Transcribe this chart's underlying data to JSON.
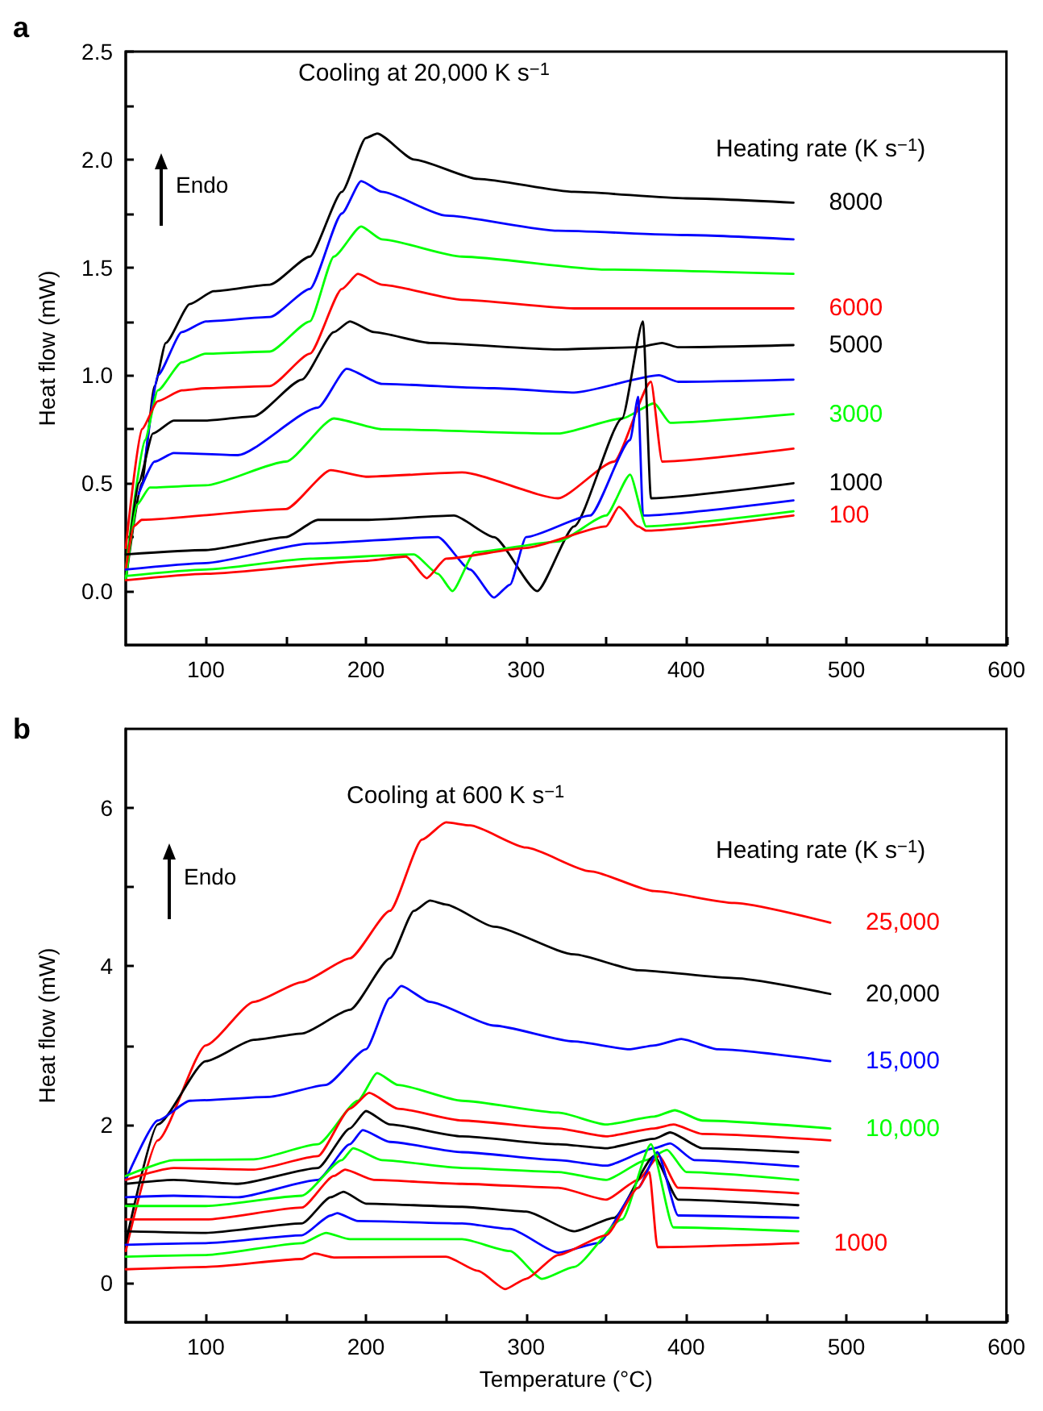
{
  "chart_data": [
    {
      "type": "line",
      "title": "Cooling at 20,000 K s$^{−1}$",
      "legend_title": "Heating rate (K s$^{−1}$)",
      "ylabel": "Heat flow (mW)",
      "annotations": [
        "a",
        "Endo"
      ],
      "xlim": [
        50,
        600
      ],
      "xticks": [
        100,
        {
          "value": 150,
          "label": null
        },
        200,
        {
          "value": 250,
          "label": null
        },
        300,
        {
          "value": 350,
          "label": null
        },
        400,
        {
          "value": 450,
          "label": null
        },
        500,
        {
          "value": 550,
          "label": null
        },
        600
      ],
      "ylim": [
        -0.25,
        2.5
      ],
      "yticks": [
        {
          "value": 0,
          "label": "0.0"
        },
        {
          "value": 0.25,
          "label": null
        },
        0.5,
        {
          "value": 0.75,
          "label": null
        },
        {
          "value": 1,
          "label": "1.0"
        },
        {
          "value": 1.25,
          "label": null
        },
        1.5,
        {
          "value": 1.75,
          "label": null
        },
        {
          "value": 2,
          "label": "2.0"
        },
        {
          "value": 2.25,
          "label": null
        },
        2.5
      ],
      "legend": false,
      "marker": "none",
      "line_style": "solid",
      "series": [
        {
          "name": "8000",
          "color": "#000000",
          "x": [
            50,
            60,
            68,
            75,
            90,
            105,
            140,
            165,
            185,
            200,
            207,
            230,
            270,
            330,
            400,
            467
          ],
          "values": [
            0.05,
            0.5,
            0.95,
            1.15,
            1.33,
            1.39,
            1.42,
            1.55,
            1.85,
            2.1,
            2.12,
            2.0,
            1.91,
            1.85,
            1.82,
            1.8
          ]
        },
        {
          "color": "#0000ff",
          "x": [
            62,
            70,
            85,
            100,
            140,
            165,
            185,
            197,
            210,
            250,
            320,
            400,
            467
          ],
          "values": [
            0.6,
            1.0,
            1.2,
            1.25,
            1.27,
            1.4,
            1.75,
            1.9,
            1.85,
            1.74,
            1.67,
            1.65,
            1.63
          ]
        },
        {
          "color": "#00ff00",
          "x": [
            50,
            62,
            70,
            85,
            100,
            140,
            165,
            180,
            197,
            210,
            260,
            350,
            467
          ],
          "values": [
            0.1,
            0.7,
            0.93,
            1.06,
            1.1,
            1.11,
            1.25,
            1.55,
            1.69,
            1.63,
            1.55,
            1.49,
            1.47
          ]
        },
        {
          "name": "6000",
          "color": "#ff0000",
          "x": [
            50,
            60,
            70,
            85,
            100,
            140,
            165,
            185,
            195,
            210,
            260,
            330,
            467
          ],
          "values": [
            0.2,
            0.75,
            0.88,
            0.93,
            0.94,
            0.95,
            1.1,
            1.4,
            1.47,
            1.42,
            1.35,
            1.31,
            1.31
          ]
        },
        {
          "name": "5000",
          "color": "#000000",
          "x": [
            50,
            58,
            67,
            80,
            100,
            130,
            160,
            180,
            190,
            205,
            240,
            320,
            370,
            385,
            395,
            467
          ],
          "values": [
            0.05,
            0.5,
            0.73,
            0.79,
            0.79,
            0.81,
            0.98,
            1.2,
            1.25,
            1.2,
            1.15,
            1.12,
            1.13,
            1.15,
            1.13,
            1.14
          ]
        },
        {
          "color": "#0000ff",
          "x": [
            58,
            68,
            80,
            120,
            170,
            188,
            210,
            280,
            330,
            383,
            395,
            467
          ],
          "values": [
            0.45,
            0.6,
            0.64,
            0.63,
            0.85,
            1.03,
            0.96,
            0.94,
            0.92,
            1.0,
            0.97,
            0.98
          ]
        },
        {
          "name": "3000",
          "color": "#00ff00",
          "x": [
            50,
            57,
            65,
            100,
            150,
            180,
            210,
            320,
            360,
            380,
            390,
            467
          ],
          "values": [
            0.05,
            0.4,
            0.48,
            0.49,
            0.6,
            0.8,
            0.75,
            0.73,
            0.8,
            0.87,
            0.78,
            0.82
          ]
        },
        {
          "color": "#ff0000",
          "x": [
            50,
            55,
            60,
            150,
            178,
            200,
            260,
            320,
            355,
            378,
            385,
            467
          ],
          "values": [
            0.1,
            0.3,
            0.33,
            0.38,
            0.56,
            0.53,
            0.55,
            0.43,
            0.6,
            0.97,
            0.6,
            0.66
          ]
        },
        {
          "name": "1000",
          "color": "#000000",
          "x": [
            50,
            100,
            150,
            170,
            200,
            255,
            280,
            307,
            330,
            360,
            373,
            378,
            467
          ],
          "values": [
            0.17,
            0.19,
            0.25,
            0.33,
            0.33,
            0.35,
            0.25,
            0.0,
            0.3,
            0.8,
            1.25,
            0.43,
            0.5
          ]
        },
        {
          "color": "#0000ff",
          "x": [
            50,
            100,
            165,
            245,
            265,
            280,
            290,
            300,
            340,
            365,
            370,
            373,
            467
          ],
          "values": [
            0.1,
            0.13,
            0.22,
            0.25,
            0.1,
            -0.03,
            0.03,
            0.25,
            0.35,
            0.7,
            0.9,
            0.35,
            0.42
          ]
        },
        {
          "color": "#00ff00",
          "x": [
            50,
            100,
            165,
            230,
            245,
            254,
            268,
            320,
            350,
            365,
            375,
            467
          ],
          "values": [
            0.07,
            0.1,
            0.15,
            0.17,
            0.08,
            0.0,
            0.18,
            0.23,
            0.35,
            0.54,
            0.3,
            0.37
          ]
        },
        {
          "name": "100",
          "color": "#ff0000",
          "x": [
            50,
            100,
            200,
            225,
            238,
            250,
            300,
            350,
            358,
            370,
            375,
            467
          ],
          "values": [
            0.05,
            0.08,
            0.14,
            0.16,
            0.06,
            0.15,
            0.2,
            0.3,
            0.39,
            0.3,
            0.28,
            0.35
          ]
        }
      ]
    },
    {
      "type": "line",
      "title": "Cooling at 600 K s$^{−1}$",
      "legend_title": "Heating rate (K s$^{−1}$)",
      "xlabel": "Temperature (°C)",
      "ylabel": "Heat flow (mW)",
      "annotations": [
        "b",
        "Endo"
      ],
      "xlim": [
        50,
        600
      ],
      "xticks": [
        100,
        {
          "value": 150,
          "label": null
        },
        200,
        {
          "value": 250,
          "label": null
        },
        300,
        {
          "value": 350,
          "label": null
        },
        400,
        {
          "value": 450,
          "label": null
        },
        500,
        {
          "value": 550,
          "label": null
        },
        600
      ],
      "ylim": [
        -0.5,
        7
      ],
      "yticks": [
        0,
        {
          "value": 1,
          "label": null
        },
        2,
        {
          "value": 3,
          "label": null
        },
        4,
        {
          "value": 5,
          "label": null
        },
        6
      ],
      "legend": false,
      "marker": "none",
      "line_style": "solid",
      "series": [
        {
          "name": "25,000",
          "color": "#ff0000",
          "x": [
            50,
            70,
            100,
            130,
            160,
            190,
            215,
            235,
            250,
            265,
            300,
            340,
            380,
            430,
            490
          ],
          "values": [
            0.4,
            1.8,
            3.0,
            3.55,
            3.8,
            4.1,
            4.7,
            5.6,
            5.82,
            5.78,
            5.5,
            5.2,
            4.95,
            4.8,
            4.55
          ]
        },
        {
          "name": "20,000",
          "color": "#000000",
          "x": [
            50,
            70,
            100,
            130,
            160,
            190,
            215,
            230,
            240,
            250,
            280,
            330,
            370,
            430,
            490
          ],
          "values": [
            0.5,
            2.0,
            2.8,
            3.07,
            3.15,
            3.45,
            4.1,
            4.7,
            4.83,
            4.78,
            4.5,
            4.15,
            3.95,
            3.85,
            3.65
          ]
        },
        {
          "name": "15,000",
          "color": "#0000ff",
          "x": [
            50,
            70,
            90,
            140,
            175,
            200,
            215,
            222,
            240,
            280,
            330,
            365,
            380,
            397,
            420,
            490
          ],
          "values": [
            1.3,
            2.05,
            2.3,
            2.35,
            2.5,
            2.95,
            3.6,
            3.75,
            3.55,
            3.25,
            3.05,
            2.95,
            3.0,
            3.08,
            2.95,
            2.8
          ]
        },
        {
          "name": "10,000",
          "color": "#00ff00",
          "x": [
            50,
            80,
            130,
            170,
            195,
            207,
            220,
            260,
            320,
            350,
            380,
            393,
            410,
            490
          ],
          "values": [
            1.35,
            1.55,
            1.56,
            1.75,
            2.3,
            2.65,
            2.5,
            2.3,
            2.15,
            2.0,
            2.1,
            2.18,
            2.05,
            1.95
          ]
        },
        {
          "color": "#ff0000",
          "x": [
            50,
            80,
            130,
            170,
            190,
            202,
            220,
            260,
            320,
            350,
            380,
            392,
            410,
            490
          ],
          "values": [
            1.3,
            1.45,
            1.43,
            1.6,
            2.2,
            2.4,
            2.2,
            2.05,
            1.95,
            1.85,
            1.95,
            2.0,
            1.88,
            1.8
          ]
        },
        {
          "color": "#000000",
          "x": [
            50,
            80,
            120,
            170,
            190,
            200,
            215,
            260,
            320,
            350,
            380,
            390,
            410,
            470
          ],
          "values": [
            1.25,
            1.3,
            1.25,
            1.45,
            1.95,
            2.17,
            2.0,
            1.85,
            1.75,
            1.7,
            1.82,
            1.9,
            1.7,
            1.65
          ]
        },
        {
          "color": "#0000ff",
          "x": [
            50,
            80,
            120,
            170,
            190,
            198,
            215,
            260,
            320,
            350,
            380,
            390,
            405,
            470
          ],
          "values": [
            1.08,
            1.1,
            1.08,
            1.3,
            1.75,
            1.93,
            1.78,
            1.65,
            1.55,
            1.48,
            1.7,
            1.76,
            1.55,
            1.47
          ]
        },
        {
          "color": "#00ff00",
          "x": [
            50,
            100,
            160,
            185,
            192,
            210,
            260,
            320,
            350,
            375,
            388,
            400,
            470
          ],
          "values": [
            0.97,
            0.97,
            1.1,
            1.55,
            1.7,
            1.55,
            1.45,
            1.4,
            1.3,
            1.55,
            1.68,
            1.4,
            1.3
          ]
        },
        {
          "color": "#ff0000",
          "x": [
            50,
            100,
            160,
            180,
            187,
            205,
            260,
            320,
            350,
            370,
            383,
            395,
            470
          ],
          "values": [
            0.8,
            0.8,
            0.95,
            1.35,
            1.43,
            1.3,
            1.25,
            1.2,
            1.05,
            1.3,
            1.6,
            1.2,
            1.13
          ]
        },
        {
          "color": "#000000",
          "x": [
            50,
            100,
            160,
            178,
            186,
            200,
            260,
            300,
            330,
            355,
            380,
            395,
            470
          ],
          "values": [
            0.65,
            0.63,
            0.75,
            1.08,
            1.15,
            1.0,
            0.96,
            0.9,
            0.65,
            0.82,
            1.6,
            1.05,
            0.98
          ]
        },
        {
          "color": "#0000ff",
          "x": [
            50,
            100,
            160,
            178,
            182,
            195,
            260,
            290,
            320,
            345,
            370,
            382,
            395,
            470
          ],
          "values": [
            0.48,
            0.5,
            0.6,
            0.85,
            0.88,
            0.78,
            0.75,
            0.68,
            0.38,
            0.5,
            1.2,
            1.65,
            0.85,
            0.82
          ]
        },
        {
          "color": "#00ff00",
          "x": [
            50,
            100,
            160,
            175,
            190,
            260,
            290,
            310,
            330,
            360,
            378,
            392,
            470
          ],
          "values": [
            0.33,
            0.35,
            0.5,
            0.63,
            0.55,
            0.55,
            0.4,
            0.05,
            0.2,
            0.8,
            1.75,
            0.7,
            0.65
          ]
        },
        {
          "name": "1000",
          "color": "#ff0000",
          "x": [
            50,
            100,
            160,
            168,
            180,
            250,
            270,
            287,
            300,
            320,
            350,
            370,
            377,
            382,
            470
          ],
          "values": [
            0.17,
            0.2,
            0.3,
            0.37,
            0.32,
            0.33,
            0.15,
            -0.08,
            0.05,
            0.35,
            0.6,
            1.2,
            1.4,
            0.45,
            0.5
          ]
        }
      ]
    }
  ]
}
